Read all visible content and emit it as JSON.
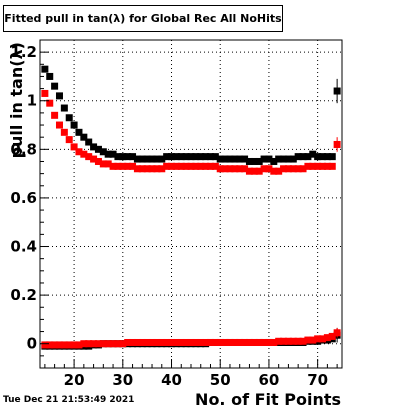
{
  "timestamp": "Tue Dec 21 21:53:49 2021",
  "chart_data": {
    "type": "scatter",
    "title": "Fitted pull in tan(λ) for Global Rec All NoHits",
    "xlabel": "No. of Fit Points",
    "ylabel": "pull in tan(λ)",
    "xlim": [
      13,
      75
    ],
    "ylim": [
      -0.1,
      1.25
    ],
    "xticks": [
      20,
      30,
      40,
      50,
      60,
      70
    ],
    "yticks": [
      0,
      0.2,
      0.4,
      0.6,
      0.8,
      1,
      1.2
    ],
    "ytick_labels": [
      "0",
      "0.2",
      "0.4",
      "0.6",
      "0.8",
      "1",
      "1.2"
    ],
    "grid": true,
    "series": [
      {
        "color": "#000000",
        "x": [
          14,
          15,
          16,
          17,
          18,
          19,
          20,
          21,
          22,
          23,
          24,
          25,
          26,
          27,
          28,
          29,
          30,
          31,
          32,
          33,
          34,
          35,
          36,
          37,
          38,
          39,
          40,
          41,
          42,
          43,
          44,
          45,
          46,
          47,
          48,
          49,
          50,
          51,
          52,
          53,
          54,
          55,
          56,
          57,
          58,
          59,
          60,
          61,
          62,
          63,
          64,
          65,
          66,
          67,
          68,
          69,
          70,
          71,
          72,
          73,
          74
        ],
        "y": [
          1.13,
          1.1,
          1.06,
          1.02,
          0.97,
          0.93,
          0.9,
          0.87,
          0.85,
          0.83,
          0.81,
          0.8,
          0.79,
          0.78,
          0.78,
          0.77,
          0.77,
          0.77,
          0.77,
          0.76,
          0.76,
          0.76,
          0.76,
          0.76,
          0.76,
          0.77,
          0.77,
          0.77,
          0.77,
          0.77,
          0.77,
          0.77,
          0.77,
          0.77,
          0.77,
          0.77,
          0.76,
          0.76,
          0.76,
          0.76,
          0.76,
          0.76,
          0.75,
          0.75,
          0.75,
          0.76,
          0.76,
          0.75,
          0.76,
          0.76,
          0.76,
          0.76,
          0.77,
          0.77,
          0.77,
          0.78,
          0.77,
          0.77,
          0.77,
          0.77,
          1.04
        ],
        "y_err": [
          0,
          0,
          0,
          0,
          0,
          0,
          0,
          0,
          0,
          0,
          0,
          0,
          0,
          0,
          0,
          0,
          0,
          0,
          0,
          0,
          0,
          0,
          0,
          0,
          0,
          0,
          0,
          0,
          0,
          0,
          0,
          0,
          0,
          0,
          0,
          0,
          0,
          0,
          0,
          0,
          0,
          0,
          0,
          0,
          0,
          0,
          0,
          0,
          0,
          0,
          0,
          0,
          0,
          0,
          0,
          0,
          0,
          0,
          0,
          0,
          0.05
        ]
      },
      {
        "color": "#ff0000",
        "x": [
          14,
          15,
          16,
          17,
          18,
          19,
          20,
          21,
          22,
          23,
          24,
          25,
          26,
          27,
          28,
          29,
          30,
          31,
          32,
          33,
          34,
          35,
          36,
          37,
          38,
          39,
          40,
          41,
          42,
          43,
          44,
          45,
          46,
          47,
          48,
          49,
          50,
          51,
          52,
          53,
          54,
          55,
          56,
          57,
          58,
          59,
          60,
          61,
          62,
          63,
          64,
          65,
          66,
          67,
          68,
          69,
          70,
          71,
          72,
          73,
          74
        ],
        "y": [
          1.03,
          0.99,
          0.94,
          0.9,
          0.87,
          0.84,
          0.81,
          0.79,
          0.78,
          0.77,
          0.76,
          0.75,
          0.74,
          0.74,
          0.73,
          0.73,
          0.73,
          0.73,
          0.73,
          0.72,
          0.72,
          0.72,
          0.72,
          0.72,
          0.72,
          0.73,
          0.73,
          0.73,
          0.73,
          0.73,
          0.73,
          0.73,
          0.73,
          0.73,
          0.73,
          0.73,
          0.72,
          0.72,
          0.72,
          0.72,
          0.72,
          0.72,
          0.71,
          0.71,
          0.71,
          0.72,
          0.72,
          0.71,
          0.71,
          0.72,
          0.72,
          0.72,
          0.72,
          0.72,
          0.73,
          0.73,
          0.73,
          0.73,
          0.73,
          0.73,
          0.82
        ],
        "y_err": [
          0,
          0,
          0,
          0,
          0,
          0,
          0,
          0,
          0,
          0,
          0,
          0,
          0,
          0,
          0,
          0,
          0,
          0,
          0,
          0,
          0,
          0,
          0,
          0,
          0,
          0,
          0,
          0,
          0,
          0,
          0,
          0,
          0,
          0,
          0,
          0,
          0,
          0,
          0,
          0,
          0,
          0,
          0,
          0,
          0,
          0,
          0,
          0,
          0,
          0,
          0,
          0,
          0,
          0,
          0,
          0,
          0,
          0,
          0,
          0,
          0.03
        ]
      },
      {
        "color": "#000000",
        "x": [
          14,
          15,
          16,
          17,
          18,
          19,
          20,
          21,
          22,
          23,
          24,
          25,
          26,
          27,
          28,
          29,
          30,
          31,
          32,
          33,
          34,
          35,
          36,
          37,
          38,
          39,
          40,
          41,
          42,
          43,
          44,
          45,
          46,
          47,
          48,
          49,
          50,
          51,
          52,
          53,
          54,
          55,
          56,
          57,
          58,
          59,
          60,
          61,
          62,
          63,
          64,
          65,
          66,
          67,
          68,
          69,
          70,
          71,
          72,
          73,
          74
        ],
        "y": [
          -0.01,
          -0.01,
          -0.01,
          -0.01,
          -0.01,
          -0.01,
          -0.01,
          -0.01,
          -0.01,
          -0.01,
          -0.005,
          -0.005,
          0,
          0,
          0,
          0,
          0,
          0,
          0,
          0,
          0,
          0,
          0,
          0,
          0,
          0,
          0,
          0,
          0,
          0,
          0,
          0,
          0,
          0,
          0.005,
          0.005,
          0.005,
          0.005,
          0.005,
          0.005,
          0.005,
          0.005,
          0.005,
          0.005,
          0.005,
          0.005,
          0.005,
          0.005,
          0.005,
          0.005,
          0.005,
          0.005,
          0.005,
          0.005,
          0.01,
          0.01,
          0.01,
          0.015,
          0.015,
          0.02,
          0.035
        ],
        "y_err": [
          0,
          0,
          0,
          0,
          0,
          0,
          0,
          0,
          0,
          0,
          0,
          0,
          0,
          0,
          0,
          0,
          0,
          0,
          0,
          0,
          0,
          0,
          0,
          0,
          0,
          0,
          0,
          0,
          0,
          0,
          0,
          0,
          0,
          0,
          0,
          0,
          0,
          0,
          0,
          0,
          0,
          0,
          0,
          0,
          0,
          0,
          0,
          0,
          0,
          0,
          0,
          0,
          0,
          0,
          0,
          0,
          0,
          0,
          0,
          0,
          0.03
        ]
      },
      {
        "color": "#ff0000",
        "x": [
          14,
          15,
          16,
          17,
          18,
          19,
          20,
          21,
          22,
          23,
          24,
          25,
          26,
          27,
          28,
          29,
          30,
          31,
          32,
          33,
          34,
          35,
          36,
          37,
          38,
          39,
          40,
          41,
          42,
          43,
          44,
          45,
          46,
          47,
          48,
          49,
          50,
          51,
          52,
          53,
          54,
          55,
          56,
          57,
          58,
          59,
          60,
          61,
          62,
          63,
          64,
          65,
          66,
          67,
          68,
          69,
          70,
          71,
          72,
          73,
          74
        ],
        "y": [
          -0.005,
          -0.005,
          -0.005,
          -0.005,
          -0.005,
          -0.005,
          -0.005,
          -0.005,
          0,
          0,
          0,
          0,
          0,
          0,
          0,
          0,
          0,
          0.005,
          0.005,
          0.005,
          0.005,
          0.005,
          0.005,
          0.005,
          0.005,
          0.005,
          0.005,
          0.005,
          0.005,
          0.005,
          0.005,
          0.005,
          0.005,
          0.005,
          0.005,
          0.005,
          0.005,
          0.005,
          0.005,
          0.005,
          0.005,
          0.005,
          0.005,
          0.005,
          0.005,
          0.005,
          0.005,
          0.005,
          0.01,
          0.01,
          0.01,
          0.01,
          0.01,
          0.01,
          0.015,
          0.015,
          0.02,
          0.02,
          0.025,
          0.03,
          0.045
        ],
        "y_err": [
          0,
          0,
          0,
          0,
          0,
          0,
          0,
          0,
          0,
          0,
          0,
          0,
          0,
          0,
          0,
          0,
          0,
          0,
          0,
          0,
          0,
          0,
          0,
          0,
          0,
          0,
          0,
          0,
          0,
          0,
          0,
          0,
          0,
          0,
          0,
          0,
          0,
          0,
          0,
          0,
          0,
          0,
          0,
          0,
          0,
          0,
          0,
          0,
          0,
          0,
          0,
          0,
          0,
          0,
          0,
          0,
          0,
          0,
          0,
          0,
          0.02
        ]
      }
    ]
  }
}
